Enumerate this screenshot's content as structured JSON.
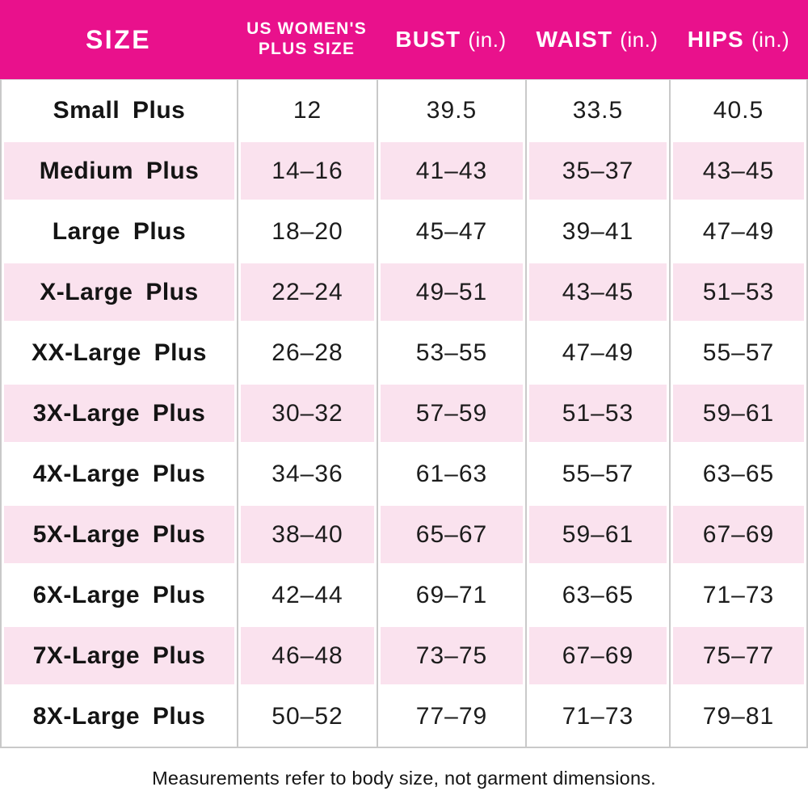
{
  "chart_data": {
    "type": "table",
    "striped": true,
    "columns": [
      {
        "label": "SIZE"
      },
      {
        "label": "US WOMEN'S PLUS SIZE",
        "line1": "US WOMEN'S",
        "line2": "PLUS SIZE"
      },
      {
        "label": "BUST (in.)",
        "word": "BUST",
        "unit": "(in.)"
      },
      {
        "label": "WAIST (in.)",
        "word": "WAIST",
        "unit": "(in.)"
      },
      {
        "label": "HIPS (in.)",
        "word": "HIPS",
        "unit": "(in.)"
      }
    ],
    "rows": [
      [
        "Small Plus",
        "12",
        "39.5",
        "33.5",
        "40.5"
      ],
      [
        "Medium Plus",
        "14–16",
        "41–43",
        "35–37",
        "43–45"
      ],
      [
        "Large Plus",
        "18–20",
        "45–47",
        "39–41",
        "47–49"
      ],
      [
        "X-Large Plus",
        "22–24",
        "49–51",
        "43–45",
        "51–53"
      ],
      [
        "XX-Large Plus",
        "26–28",
        "53–55",
        "47–49",
        "55–57"
      ],
      [
        "3X-Large Plus",
        "30–32",
        "57–59",
        "51–53",
        "59–61"
      ],
      [
        "4X-Large Plus",
        "34–36",
        "61–63",
        "55–57",
        "63–65"
      ],
      [
        "5X-Large Plus",
        "38–40",
        "65–67",
        "59–61",
        "67–69"
      ],
      [
        "6X-Large Plus",
        "42–44",
        "69–71",
        "63–65",
        "71–73"
      ],
      [
        "7X-Large Plus",
        "46–48",
        "73–75",
        "67–69",
        "75–77"
      ],
      [
        "8X-Large Plus",
        "50–52",
        "77–79",
        "71–73",
        "79–81"
      ]
    ]
  },
  "footer": {
    "note": "Measurements refer to body size, not garment dimensions."
  },
  "colors": {
    "header_bg": "#E9118C",
    "header_text": "#FFFFFF",
    "stripe_bg": "#FAE2EE",
    "grid_line": "#C9C9C9",
    "text": "#1C1C1C"
  }
}
